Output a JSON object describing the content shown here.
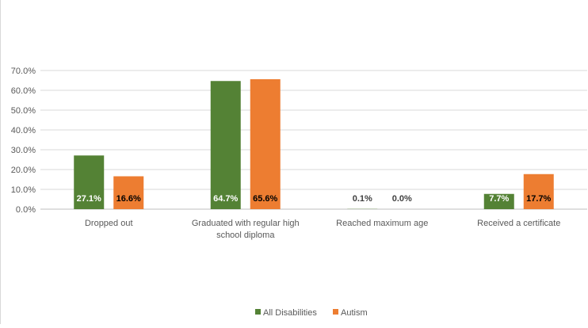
{
  "chart_data": {
    "type": "bar",
    "categories": [
      [
        "Dropped out"
      ],
      [
        "Graduated with regular high",
        "school diploma"
      ],
      [
        "Reached maximum age"
      ],
      [
        "Received a certificate"
      ]
    ],
    "series": [
      {
        "name": "All Disabilities",
        "color": "#548235",
        "values": [
          27.1,
          64.7,
          0.1,
          7.7
        ],
        "labels": [
          "27.1%",
          "64.7%",
          "0.1%",
          "7.7%"
        ]
      },
      {
        "name": "Autism",
        "color": "#ED7D31",
        "values": [
          16.6,
          65.6,
          0.0,
          17.7
        ],
        "labels": [
          "16.6%",
          "65.6%",
          "0.0%",
          "17.7%"
        ]
      }
    ],
    "ylim": [
      0,
      70
    ],
    "yticks": [
      "0.0%",
      "10.0%",
      "20.0%",
      "30.0%",
      "40.0%",
      "50.0%",
      "60.0%",
      "70.0%"
    ],
    "grid": true,
    "legend": "bottom-center"
  }
}
